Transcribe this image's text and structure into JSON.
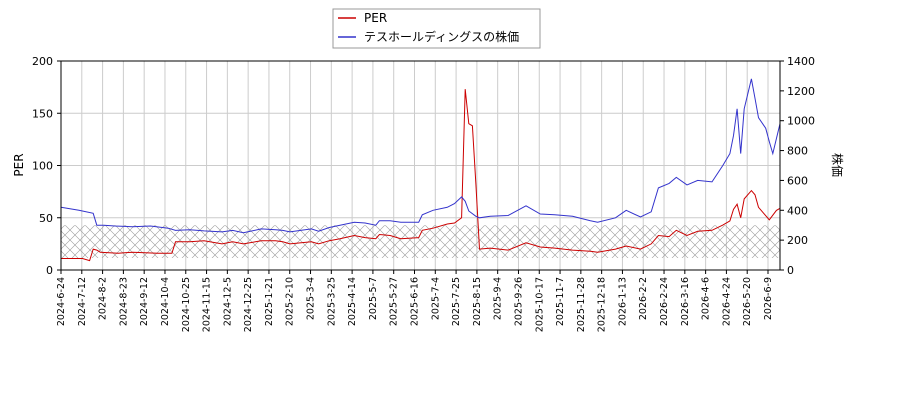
{
  "chart_data": {
    "type": "line",
    "left_axis": {
      "label": "PER",
      "range": [
        0,
        200
      ],
      "ticks": [
        0,
        50,
        100,
        150,
        200
      ]
    },
    "right_axis": {
      "label": "株価",
      "range": [
        0,
        1400
      ],
      "ticks": [
        0,
        200,
        400,
        600,
        800,
        1000,
        1200,
        1400
      ]
    },
    "x_tick_labels": [
      "2024-6-24",
      "2024-7-12",
      "2024-8-2",
      "2024-8-23",
      "2024-9-12",
      "2024-10-4",
      "2024-10-25",
      "2024-11-15",
      "2024-12-5",
      "2024-12-25",
      "2025-1-21",
      "2025-2-10",
      "2025-3-4",
      "2025-3-25",
      "2025-4-14",
      "2025-5-7",
      "2025-5-27",
      "2025-6-16",
      "2025-7-4",
      "2025-7-25",
      "2025-8-15",
      "2025-9-4",
      "2025-9-26",
      "2025-10-17",
      "2025-11-7",
      "2025-11-28",
      "2025-12-18",
      "2026-1-13",
      "2026-2-2",
      "2026-2-24",
      "2026-3-16",
      "2026-4-6",
      "2026-4-24",
      "2026-5-20",
      "2026-6-9"
    ],
    "grid": true,
    "legend_position": "top-center",
    "hatched_band": {
      "axis": "right",
      "from": 0,
      "to": 300
    },
    "series": [
      {
        "name": "PER",
        "color": "#cc0000",
        "axis": "left",
        "points": [
          [
            0,
            11
          ],
          [
            6,
            11
          ],
          [
            8,
            9
          ],
          [
            9,
            20
          ],
          [
            10,
            19
          ],
          [
            11,
            17
          ],
          [
            16,
            16
          ],
          [
            20,
            17
          ],
          [
            27,
            16
          ],
          [
            31,
            16
          ],
          [
            32,
            27
          ],
          [
            36,
            27
          ],
          [
            40,
            28
          ],
          [
            45,
            25
          ],
          [
            48,
            27
          ],
          [
            51,
            25
          ],
          [
            56,
            28
          ],
          [
            60,
            28
          ],
          [
            62,
            27
          ],
          [
            64,
            25
          ],
          [
            70,
            27
          ],
          [
            72,
            25
          ],
          [
            75,
            28
          ],
          [
            78,
            30
          ],
          [
            82,
            33
          ],
          [
            85,
            31
          ],
          [
            88,
            30
          ],
          [
            89,
            34
          ],
          [
            92,
            33
          ],
          [
            95,
            30
          ],
          [
            100,
            31
          ],
          [
            101,
            38
          ],
          [
            104,
            40
          ],
          [
            108,
            44
          ],
          [
            110,
            45
          ],
          [
            112,
            50
          ],
          [
            113,
            173
          ],
          [
            114,
            140
          ],
          [
            115,
            138
          ],
          [
            116,
            82
          ],
          [
            117,
            20
          ],
          [
            120,
            21
          ],
          [
            125,
            19
          ],
          [
            130,
            26
          ],
          [
            134,
            22
          ],
          [
            138,
            21
          ],
          [
            143,
            19
          ],
          [
            148,
            18
          ],
          [
            150,
            17
          ],
          [
            155,
            20
          ],
          [
            158,
            23
          ],
          [
            162,
            20
          ],
          [
            165,
            25
          ],
          [
            167,
            33
          ],
          [
            170,
            32
          ],
          [
            172,
            38
          ],
          [
            175,
            33
          ],
          [
            178,
            37
          ],
          [
            182,
            38
          ],
          [
            185,
            43
          ],
          [
            187,
            47
          ],
          [
            188,
            58
          ],
          [
            189,
            63
          ],
          [
            190,
            50
          ],
          [
            191,
            68
          ],
          [
            193,
            76
          ],
          [
            194,
            72
          ],
          [
            195,
            60
          ],
          [
            198,
            48
          ],
          [
            200,
            57
          ],
          [
            201,
            59
          ]
        ]
      },
      {
        "name": "テスホールディングスの株価",
        "color": "#3333cc",
        "axis": "right",
        "points": [
          [
            0,
            420
          ],
          [
            5,
            400
          ],
          [
            9,
            380
          ],
          [
            10,
            300
          ],
          [
            12,
            300
          ],
          [
            15,
            295
          ],
          [
            20,
            290
          ],
          [
            25,
            295
          ],
          [
            30,
            280
          ],
          [
            32,
            265
          ],
          [
            36,
            270
          ],
          [
            40,
            262
          ],
          [
            45,
            255
          ],
          [
            48,
            265
          ],
          [
            51,
            250
          ],
          [
            56,
            275
          ],
          [
            60,
            270
          ],
          [
            62,
            265
          ],
          [
            64,
            255
          ],
          [
            70,
            275
          ],
          [
            72,
            260
          ],
          [
            75,
            285
          ],
          [
            78,
            300
          ],
          [
            82,
            320
          ],
          [
            85,
            315
          ],
          [
            88,
            300
          ],
          [
            89,
            330
          ],
          [
            92,
            330
          ],
          [
            95,
            320
          ],
          [
            100,
            320
          ],
          [
            101,
            370
          ],
          [
            104,
            400
          ],
          [
            108,
            420
          ],
          [
            110,
            445
          ],
          [
            112,
            490
          ],
          [
            113,
            460
          ],
          [
            114,
            395
          ],
          [
            116,
            360
          ],
          [
            117,
            350
          ],
          [
            120,
            360
          ],
          [
            125,
            365
          ],
          [
            130,
            430
          ],
          [
            134,
            375
          ],
          [
            138,
            370
          ],
          [
            143,
            360
          ],
          [
            148,
            330
          ],
          [
            150,
            320
          ],
          [
            155,
            350
          ],
          [
            158,
            400
          ],
          [
            162,
            355
          ],
          [
            165,
            390
          ],
          [
            167,
            550
          ],
          [
            170,
            580
          ],
          [
            172,
            620
          ],
          [
            175,
            570
          ],
          [
            178,
            600
          ],
          [
            182,
            590
          ],
          [
            185,
            700
          ],
          [
            187,
            780
          ],
          [
            188,
            900
          ],
          [
            189,
            1080
          ],
          [
            190,
            780
          ],
          [
            191,
            1080
          ],
          [
            193,
            1280
          ],
          [
            194,
            1150
          ],
          [
            195,
            1020
          ],
          [
            197,
            950
          ],
          [
            198,
            860
          ],
          [
            199,
            780
          ],
          [
            200,
            880
          ],
          [
            201,
            980
          ]
        ]
      }
    ]
  }
}
